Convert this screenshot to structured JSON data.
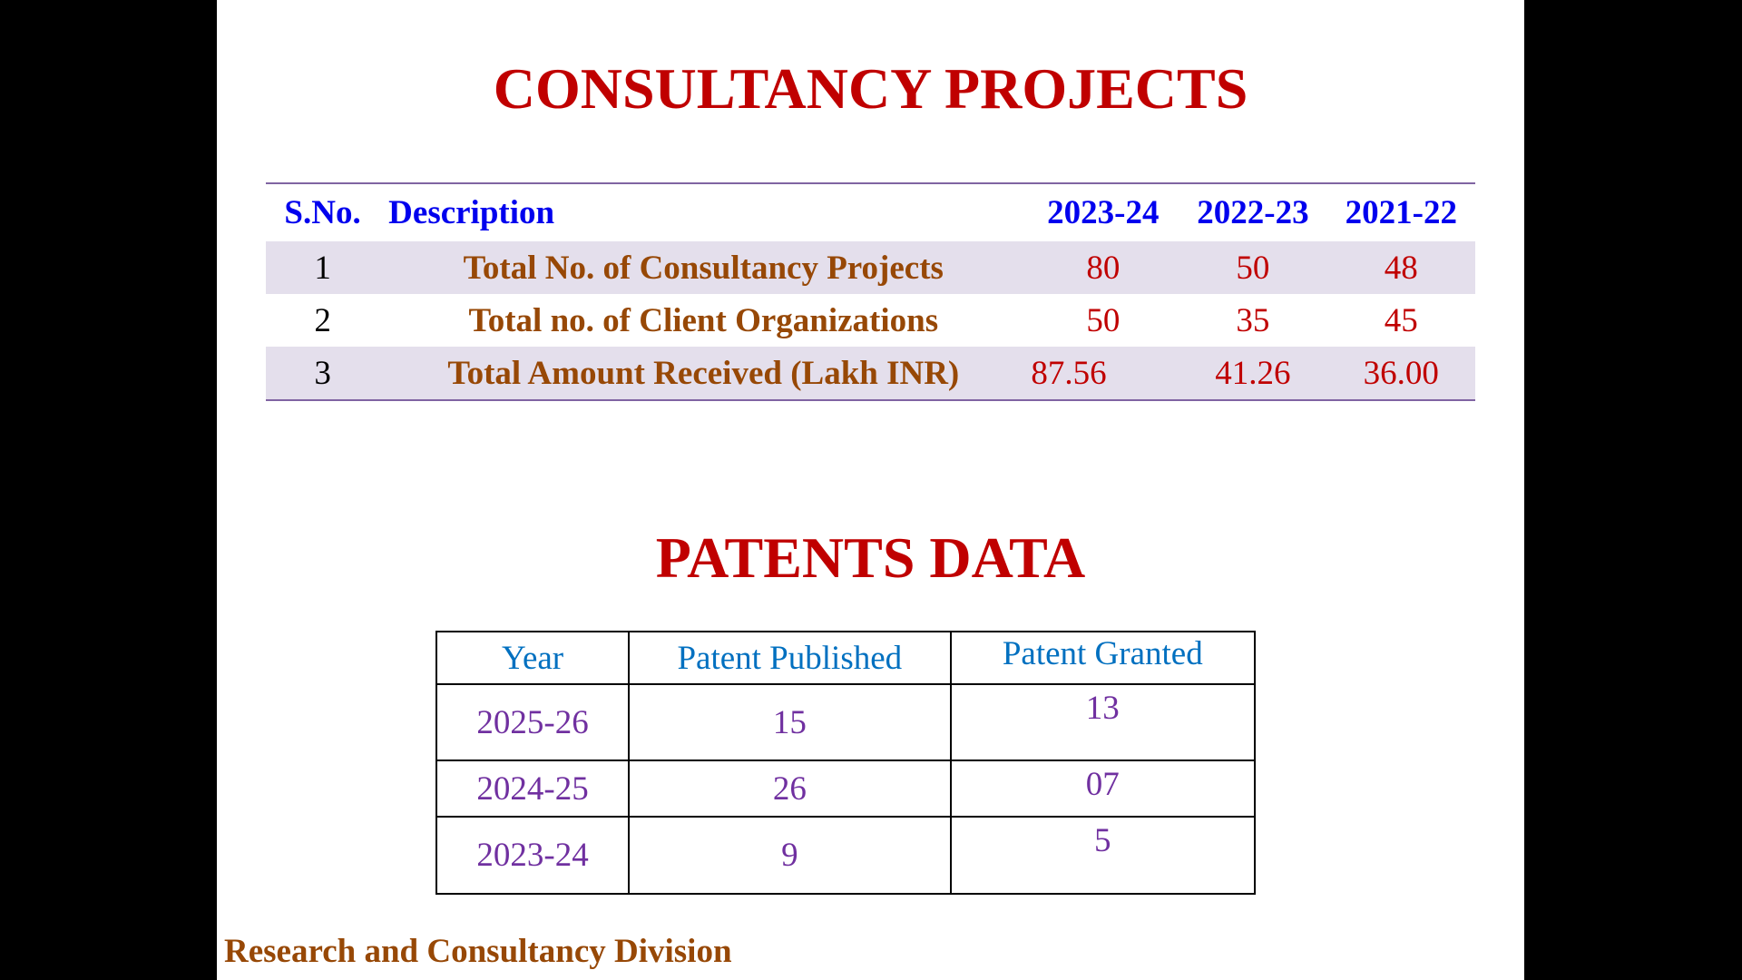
{
  "consultancy": {
    "title": "CONSULTANCY PROJECTS",
    "headers": [
      "S.No.",
      "Description",
      "2023-24",
      "2022-23",
      "2021-22"
    ],
    "rows": [
      {
        "sno": "1",
        "description": "Total No. of Consultancy Projects",
        "y2023": "80",
        "y2022": "50",
        "y2021": "48"
      },
      {
        "sno": "2",
        "description": "Total no. of Client Organizations",
        "y2023": "50",
        "y2022": "35",
        "y2021": "45"
      },
      {
        "sno": "3",
        "description": "Total Amount Received (Lakh INR)",
        "y2023": "87.56",
        "y2022": "41.26",
        "y2021": "36.00"
      }
    ]
  },
  "patents": {
    "title": "PATENTS DATA",
    "headers": [
      "Year",
      "Patent Published",
      "Patent Granted"
    ],
    "rows": [
      {
        "year": "2025-26",
        "published": "15",
        "granted": "13"
      },
      {
        "year": "2024-25",
        "published": "26",
        "granted": "07"
      },
      {
        "year": "2023-24",
        "published": "9",
        "granted": "5"
      }
    ]
  },
  "footer": "Research and Consultancy Division",
  "colors": {
    "title_red": "#c00000",
    "header_blue": "#0000ee",
    "description_brown": "#974806",
    "row_shade": "#e4dfec",
    "table_rule": "#8064a2",
    "patent_header": "#0070c0",
    "patent_values": "#7030a0"
  }
}
